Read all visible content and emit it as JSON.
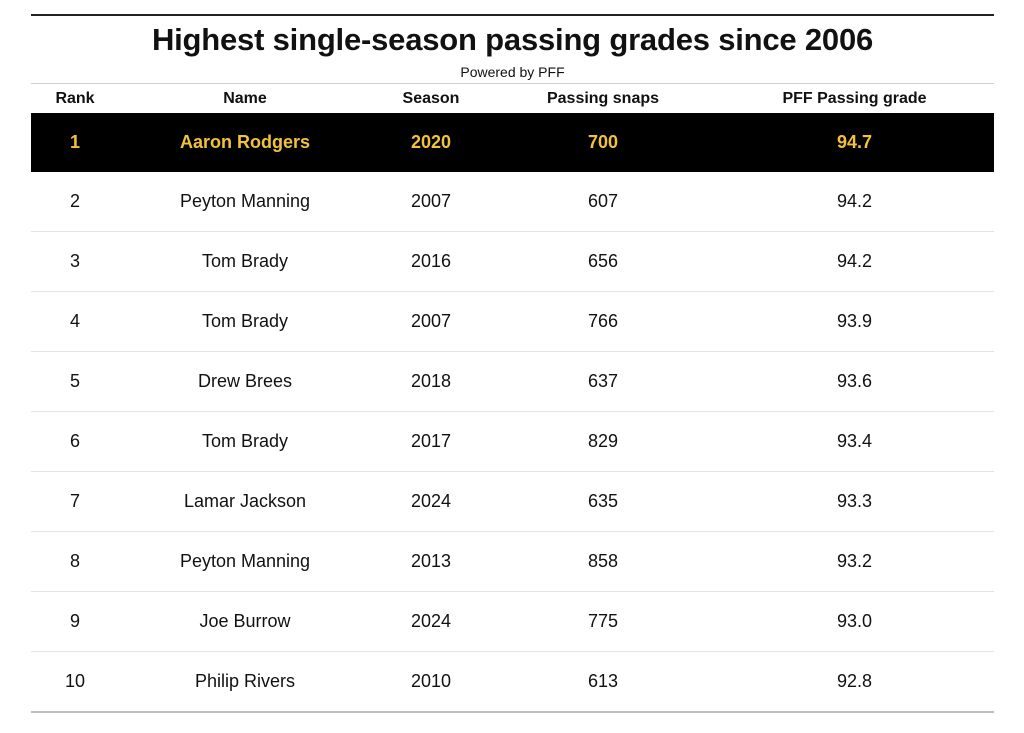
{
  "title": "Highest single-season passing grades since 2006",
  "subtitle": "Powered by PFF",
  "colors": {
    "highlight_row_bg": "#000000",
    "highlight_row_text": "#f2c23a"
  },
  "chart_data": {
    "type": "table",
    "title": "Highest single-season passing grades since 2006",
    "subtitle": "Powered by PFF",
    "columns": [
      "Rank",
      "Name",
      "Season",
      "Passing snaps",
      "PFF Passing grade"
    ],
    "highlighted_row": 0,
    "rows": [
      [
        "1",
        "Aaron Rodgers",
        "2020",
        "700",
        "94.7"
      ],
      [
        "2",
        "Peyton Manning",
        "2007",
        "607",
        "94.2"
      ],
      [
        "3",
        "Tom Brady",
        "2016",
        "656",
        "94.2"
      ],
      [
        "4",
        "Tom Brady",
        "2007",
        "766",
        "93.9"
      ],
      [
        "5",
        "Drew Brees",
        "2018",
        "637",
        "93.6"
      ],
      [
        "6",
        "Tom Brady",
        "2017",
        "829",
        "93.4"
      ],
      [
        "7",
        "Lamar Jackson",
        "2024",
        "635",
        "93.3"
      ],
      [
        "8",
        "Peyton Manning",
        "2013",
        "858",
        "93.2"
      ],
      [
        "9",
        "Joe Burrow",
        "2024",
        "775",
        "93.0"
      ],
      [
        "10",
        "Philip Rivers",
        "2010",
        "613",
        "92.8"
      ]
    ]
  }
}
